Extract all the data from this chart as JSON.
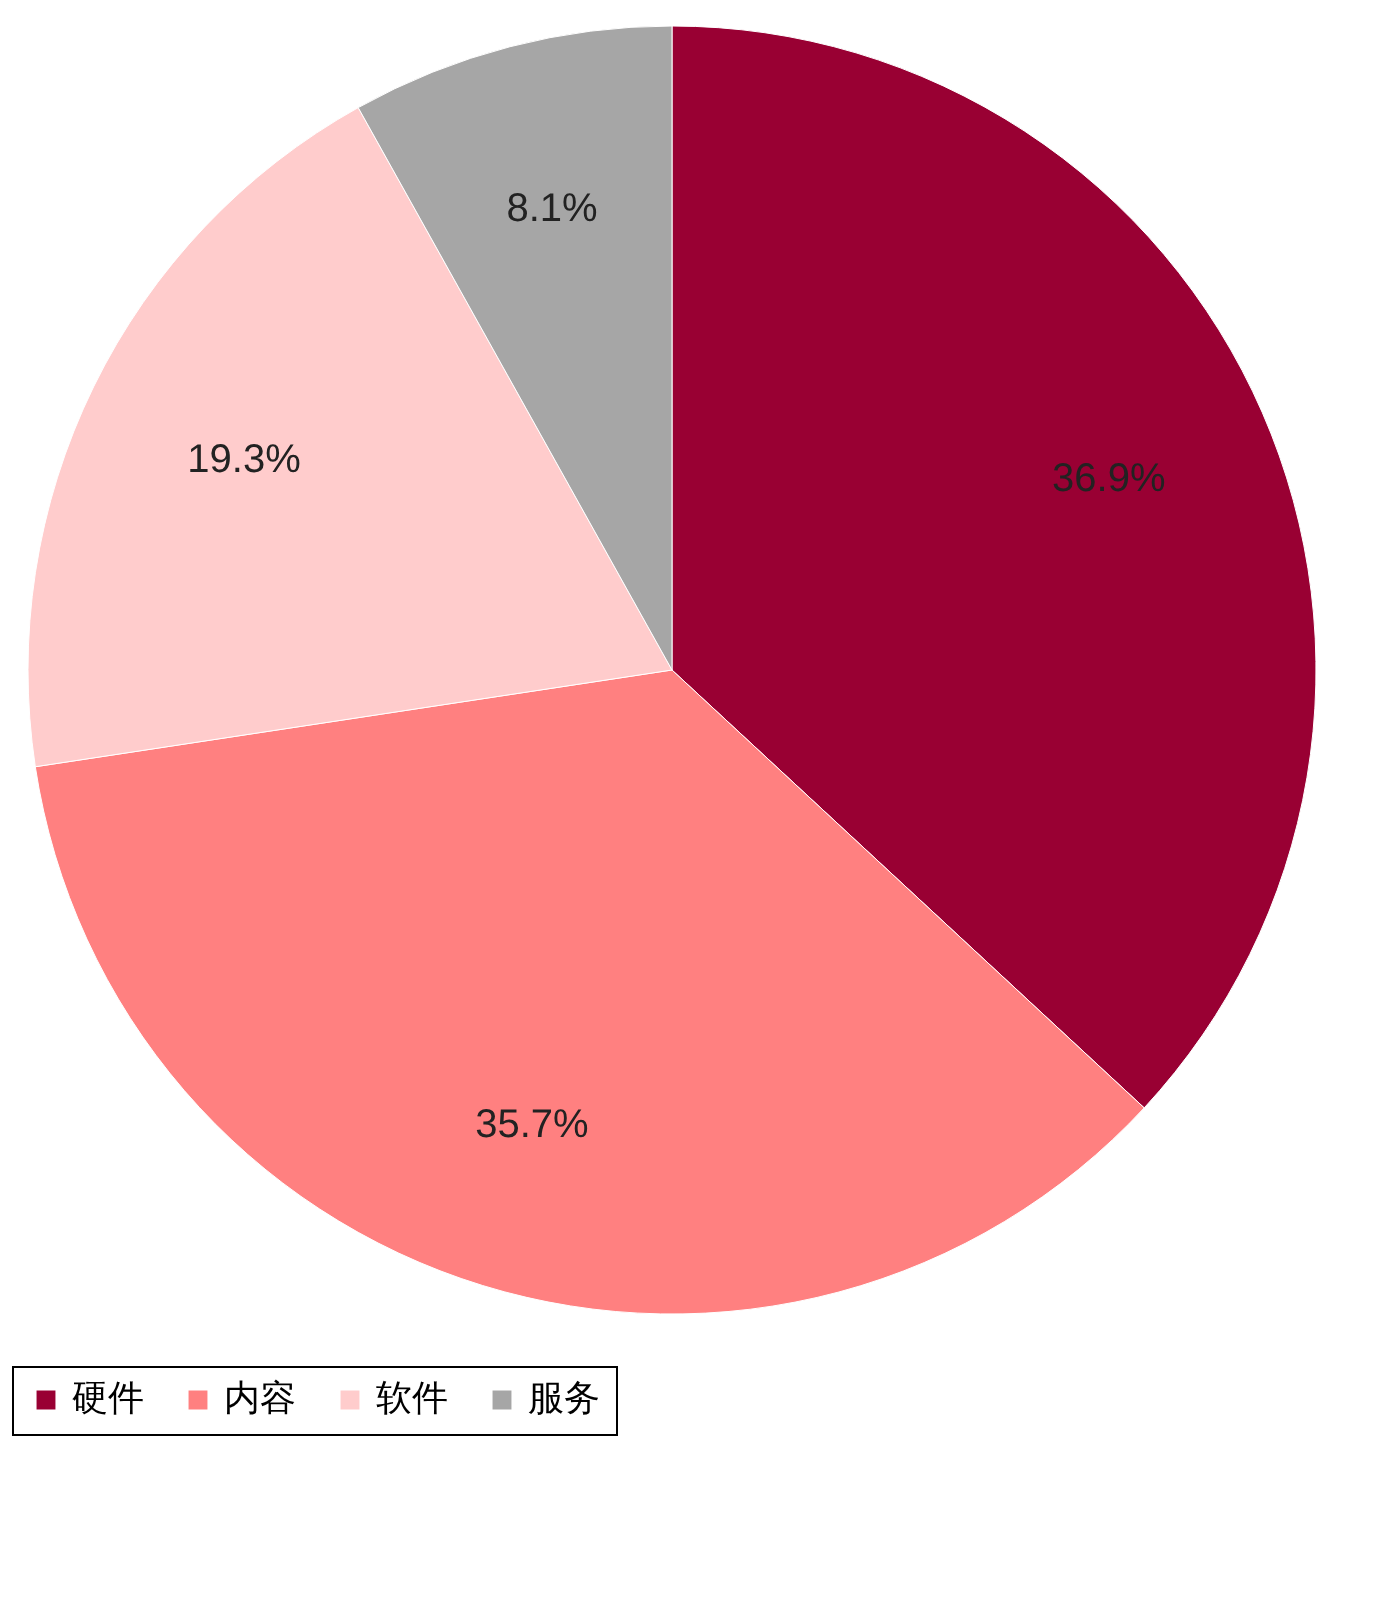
{
  "chart_data": {
    "type": "pie",
    "categories": [
      "硬件",
      "内容",
      "软件",
      "服务"
    ],
    "values": [
      36.9,
      35.7,
      19.3,
      8.1
    ],
    "colors": [
      "#990033",
      "#ff8080",
      "#ffcccc",
      "#a6a6a6"
    ],
    "value_labels": [
      "36.9%",
      "35.7%",
      "19.3%",
      "8.1%"
    ],
    "legend": "bottom"
  }
}
